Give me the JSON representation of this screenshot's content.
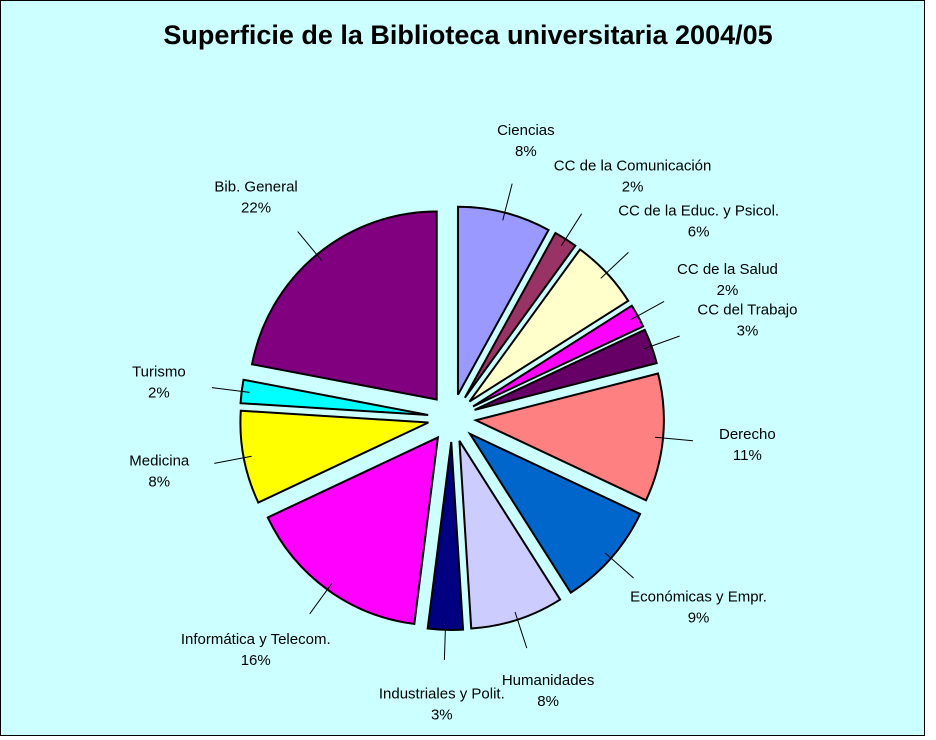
{
  "chart_data": {
    "type": "pie",
    "title": "Superficie de la Biblioteca universitaria 2004/05",
    "categories": [
      "Ciencias",
      "CC de la Comunicación",
      "CC de la Educ. y Psicol.",
      "CC de la Salud",
      "CC del Trabajo",
      "Derecho",
      "Económicas y Empr.",
      "Humanidades",
      "Industriales y Polit.",
      "Informática y Telecom.",
      "Medicina",
      "Turismo",
      "Bib. General"
    ],
    "values": [
      8,
      2,
      6,
      2,
      3,
      11,
      9,
      8,
      3,
      16,
      8,
      2,
      22
    ],
    "value_labels": [
      "8%",
      "2%",
      "6%",
      "2%",
      "3%",
      "11%",
      "9%",
      "8%",
      "3%",
      "16%",
      "8%",
      "2%",
      "22%"
    ],
    "colors": [
      "#9999ff",
      "#993366",
      "#ffffcc",
      "#ff00ff",
      "#660066",
      "#ff8080",
      "#0066cc",
      "#ccccff",
      "#000080",
      "#ff00ff",
      "#ffff00",
      "#00ffff",
      "#800080"
    ]
  }
}
